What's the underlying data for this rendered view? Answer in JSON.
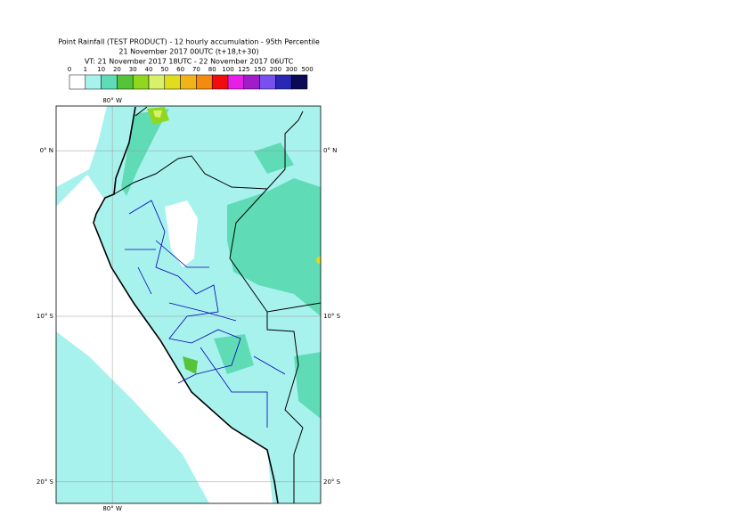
{
  "map": {
    "title_lines": [
      "Point Rainfall (TEST PRODUCT) - 12 hourly accumulation - 95th Percentile",
      "21 November 2017 00UTC (t+18,t+30)",
      "VT: 21 November 2017 18UTC - 22 November 2017 06UTC"
    ],
    "legend": {
      "thresholds": [
        0,
        1,
        10,
        20,
        30,
        40,
        50,
        60,
        70,
        80,
        100,
        125,
        150,
        200,
        300,
        500
      ],
      "colors": [
        "#ffffff",
        "#a8f2ee",
        "#5fdcb6",
        "#55c43a",
        "#8fd81e",
        "#d8f06a",
        "#e2dc1e",
        "#f2b21a",
        "#f58a10",
        "#f20c0c",
        "#e61ee6",
        "#a01ec8",
        "#7850f0",
        "#2828b4",
        "#0a0a55"
      ]
    },
    "lonlim": [
      -83.4,
      -67.4
    ],
    "latlim": [
      2.7,
      -21.3
    ],
    "lon_lines": [
      {
        "value": -80,
        "label": "80° W"
      }
    ],
    "lat_lines": [
      {
        "value": 0,
        "label": "0° N"
      },
      {
        "value": -10,
        "label": "10° S"
      },
      {
        "value": -20,
        "label": "20° S"
      }
    ]
  }
}
